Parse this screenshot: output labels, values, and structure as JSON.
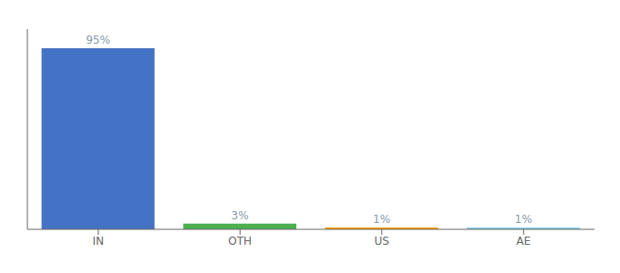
{
  "chart_data": {
    "type": "bar",
    "categories": [
      "IN",
      "OTH",
      "US",
      "AE"
    ],
    "values": [
      95,
      3,
      1,
      1
    ],
    "value_labels": [
      "95%",
      "3%",
      "1%",
      "1%"
    ],
    "colors": [
      "#4472c4",
      "#4caf50",
      "#ff9800",
      "#87ceeb"
    ],
    "ylim": [
      0,
      105
    ],
    "yticks": [],
    "tick_labels": "x",
    "data_labels": true
  }
}
